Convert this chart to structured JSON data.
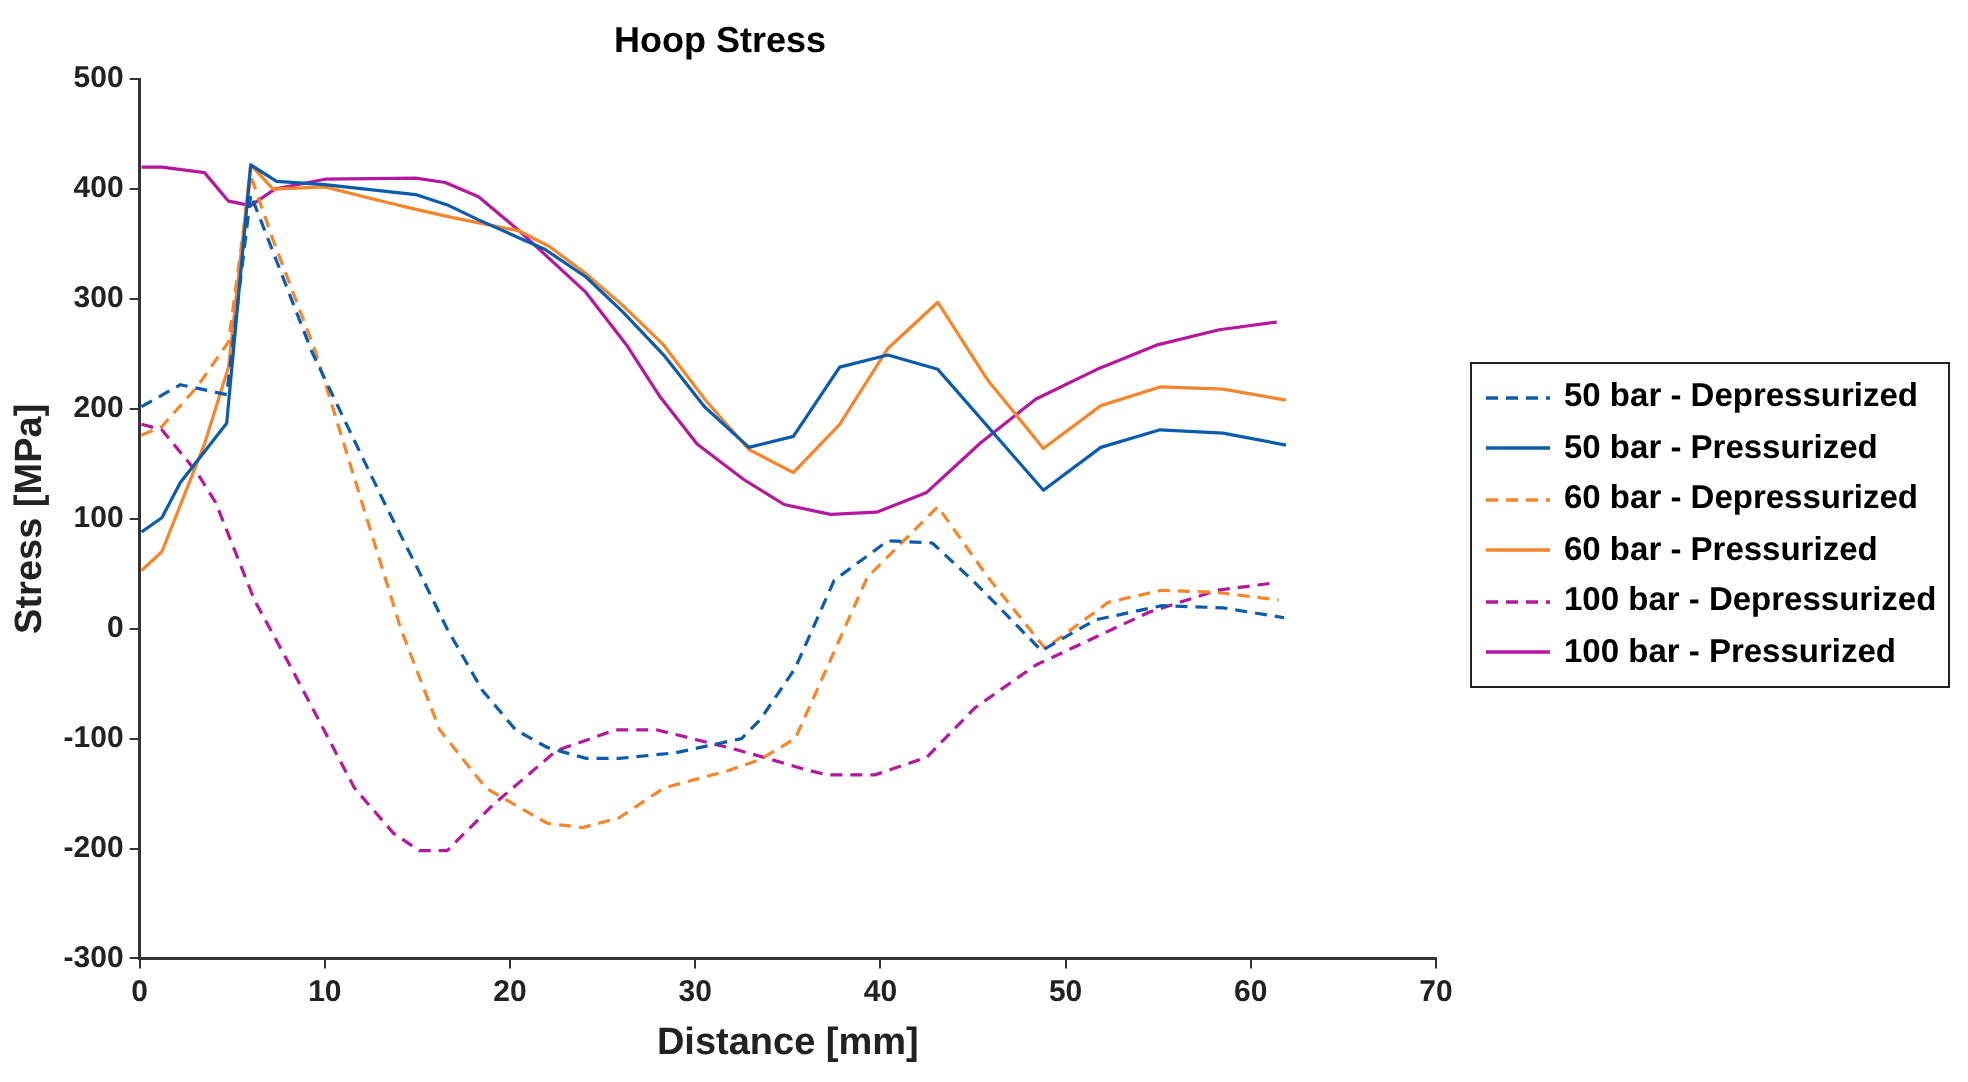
{
  "chart_data": {
    "type": "line",
    "title": "Hoop Stress",
    "xlabel": "Distance [mm]",
    "ylabel": "Stress [MPa]",
    "xlim": [
      0,
      70
    ],
    "xticks": [
      0,
      10,
      20,
      30,
      40,
      50,
      60,
      70
    ],
    "ylim": [
      -300,
      500
    ],
    "yticks": [
      -300,
      -200,
      -100,
      0,
      100,
      200,
      300,
      400,
      500
    ],
    "grid": false,
    "legend": "right",
    "marker": "none",
    "series": [
      {
        "name": "50 bar - Depressurized",
        "color": "#0b5cad",
        "line_style": "dashed",
        "x": [
          0.1,
          2.2,
          4.7,
          6.0,
          7.5,
          9.3,
          11.2,
          13.2,
          15.0,
          16.6,
          18.5,
          20.3,
          22.0,
          24.1,
          25.9,
          28.9,
          32.5,
          33.5,
          35.4,
          37.5,
          40.4,
          42.8,
          45.1,
          48.7,
          51.6,
          55.2,
          58.5,
          61.8
        ],
        "values": [
          202,
          222,
          213,
          395,
          330,
          252,
          185,
          115,
          55,
          0,
          -56,
          -92,
          -108,
          -118,
          -118,
          -113,
          -100,
          -83,
          -36,
          44,
          80,
          78,
          42,
          -20,
          8,
          21,
          19,
          10
        ]
      },
      {
        "name": "50 bar - Pressurized",
        "color": "#0b5cad",
        "line_style": "solid",
        "x": [
          0.1,
          1.2,
          2.2,
          4.7,
          6.0,
          7.4,
          10,
          12.2,
          14.9,
          16.7,
          18.3,
          21.9,
          24.1,
          26.1,
          28.3,
          30.5,
          32.9,
          35.3,
          37.8,
          40.4,
          43.1,
          48.8,
          51.9,
          55.1,
          58.5,
          61.9
        ],
        "values": [
          88,
          101,
          133,
          187,
          422,
          407,
          404,
          400,
          395,
          385,
          372,
          345,
          320,
          288,
          249,
          202,
          165,
          175,
          238,
          249,
          236,
          126,
          165,
          181,
          178,
          167
        ]
      },
      {
        "name": "60 bar - Depressurized",
        "color": "#f7862b",
        "line_style": "dashed",
        "x": [
          0.1,
          1.2,
          3.1,
          4.8,
          6.0,
          7.2,
          9.5,
          12.0,
          14.1,
          16.2,
          18.7,
          22.0,
          23.9,
          25.9,
          28.3,
          31.8,
          33.5,
          35.4,
          37.1,
          39.3,
          43.1,
          45.8,
          48.9,
          52.3,
          55.2,
          58.2,
          61.5
        ],
        "values": [
          176,
          184,
          220,
          261,
          412,
          354,
          252,
          115,
          0,
          -92,
          -145,
          -177,
          -181,
          -172,
          -145,
          -129,
          -119,
          -100,
          -36,
          47,
          111,
          47,
          -18,
          24,
          35,
          33,
          26
        ]
      },
      {
        "name": "60 bar - Pressurized",
        "color": "#f7862b",
        "line_style": "solid",
        "x": [
          0.1,
          1.2,
          3.5,
          4.8,
          6.0,
          7.2,
          10,
          12.6,
          14.8,
          16.9,
          20.5,
          22.1,
          24.1,
          26.1,
          28.3,
          30.6,
          32.9,
          35.3,
          37.8,
          40.4,
          43.1,
          45.8,
          48.8,
          51.9,
          55.1,
          58.5,
          61.9
        ],
        "values": [
          53,
          70,
          168,
          238,
          422,
          400,
          402,
          391,
          382,
          374,
          362,
          348,
          323,
          294,
          258,
          207,
          163,
          142,
          186,
          255,
          297,
          226,
          164,
          203,
          220,
          218,
          208
        ]
      },
      {
        "name": "100 bar - Depressurized",
        "color": "#b5179e",
        "line_style": "dashed",
        "x": [
          0.1,
          1.2,
          3.1,
          4.1,
          6.2,
          8.2,
          11.6,
          13.7,
          15.1,
          16.6,
          19.1,
          22.5,
          25.7,
          27.9,
          32.0,
          33.9,
          35.7,
          37.1,
          39.7,
          42.5,
          45.1,
          48.4,
          51.2,
          54.5,
          58.2,
          61.4
        ],
        "values": [
          186,
          181,
          142,
          115,
          26,
          -36,
          -145,
          -186,
          -202,
          -202,
          -160,
          -111,
          -92,
          -92,
          -109,
          -118,
          -127,
          -133,
          -133,
          -117,
          -72,
          -33,
          -11,
          15,
          35,
          42
        ]
      },
      {
        "name": "100 bar - Pressurized",
        "color": "#b5179e",
        "line_style": "solid",
        "x": [
          0.1,
          1.2,
          3.5,
          4.8,
          6.0,
          7.3,
          10,
          14.9,
          16.5,
          18.3,
          20.5,
          24.1,
          26.3,
          28.1,
          30.1,
          32.6,
          34.8,
          37.3,
          39.8,
          42.5,
          45.4,
          48.4,
          51.7,
          54.9,
          58.3,
          61.4
        ],
        "values": [
          420,
          420,
          415,
          389,
          385,
          400,
          409,
          410,
          406,
          393,
          362,
          306,
          258,
          211,
          168,
          136,
          113,
          104,
          106,
          124,
          169,
          209,
          236,
          258,
          272,
          279
        ]
      }
    ]
  }
}
